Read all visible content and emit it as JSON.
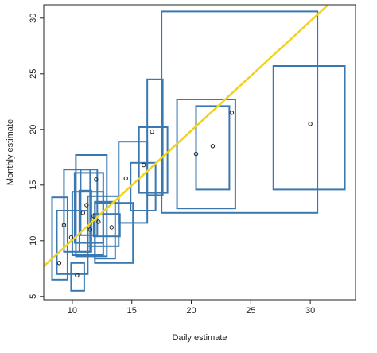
{
  "chart_data": {
    "type": "scatter",
    "xlabel": "Daily estimate",
    "ylabel": "Monthly estimate",
    "xlim": [
      7.6,
      33.8
    ],
    "ylim": [
      4.7,
      31.2
    ],
    "x_ticks": [
      10,
      15,
      20,
      25,
      30
    ],
    "y_ticks": [
      5,
      10,
      15,
      20,
      25,
      30
    ],
    "grid": false,
    "colors": {
      "rect": "#3b78b0",
      "line": "#f2d21a",
      "point": "#222222"
    },
    "fit_line": {
      "from": [
        7.6,
        7.7
      ],
      "to": [
        31.5,
        31.2
      ]
    },
    "points": [
      {
        "x": 8.9,
        "y": 8.0
      },
      {
        "x": 9.3,
        "y": 11.4
      },
      {
        "x": 9.9,
        "y": 10.3
      },
      {
        "x": 10.4,
        "y": 6.9
      },
      {
        "x": 10.9,
        "y": 12.5
      },
      {
        "x": 11.2,
        "y": 13.2
      },
      {
        "x": 11.5,
        "y": 11.0
      },
      {
        "x": 11.8,
        "y": 12.2
      },
      {
        "x": 12.0,
        "y": 15.5
      },
      {
        "x": 12.2,
        "y": 11.7
      },
      {
        "x": 13.3,
        "y": 11.2
      },
      {
        "x": 14.5,
        "y": 15.6
      },
      {
        "x": 16.0,
        "y": 16.8
      },
      {
        "x": 16.7,
        "y": 19.8
      },
      {
        "x": 20.4,
        "y": 17.8
      },
      {
        "x": 21.8,
        "y": 18.5
      },
      {
        "x": 23.4,
        "y": 21.5
      },
      {
        "x": 30.0,
        "y": 20.5
      }
    ],
    "intervals": [
      {
        "x0": 8.3,
        "x1": 9.6,
        "y0": 6.5,
        "y1": 13.9
      },
      {
        "x0": 8.7,
        "x1": 11.3,
        "y0": 7.0,
        "y1": 12.7
      },
      {
        "x0": 9.9,
        "x1": 11.0,
        "y0": 5.5,
        "y1": 8.0
      },
      {
        "x0": 9.3,
        "x1": 11.5,
        "y0": 9.0,
        "y1": 16.4
      },
      {
        "x0": 10.3,
        "x1": 12.9,
        "y0": 8.6,
        "y1": 17.7
      },
      {
        "x0": 10.6,
        "x1": 11.6,
        "y0": 9.0,
        "y1": 14.5
      },
      {
        "x0": 10.0,
        "x1": 12.6,
        "y0": 8.7,
        "y1": 14.4
      },
      {
        "x0": 10.2,
        "x1": 12.6,
        "y0": 9.8,
        "y1": 16.1
      },
      {
        "x0": 10.7,
        "x1": 12.1,
        "y0": 10.5,
        "y1": 16.4
      },
      {
        "x0": 11.3,
        "x1": 13.9,
        "y0": 9.5,
        "y1": 14.0
      },
      {
        "x0": 11.9,
        "x1": 13.6,
        "y0": 8.4,
        "y1": 13.5
      },
      {
        "x0": 11.8,
        "x1": 14.0,
        "y0": 10.4,
        "y1": 12.4
      },
      {
        "x0": 11.9,
        "x1": 15.1,
        "y0": 8.0,
        "y1": 13.4
      },
      {
        "x0": 13.9,
        "x1": 16.3,
        "y0": 11.6,
        "y1": 18.9
      },
      {
        "x0": 14.9,
        "x1": 17.0,
        "y0": 12.7,
        "y1": 17.0
      },
      {
        "x0": 15.6,
        "x1": 18.0,
        "y0": 14.3,
        "y1": 20.2
      },
      {
        "x0": 16.3,
        "x1": 17.6,
        "y0": 14.1,
        "y1": 24.5
      },
      {
        "x0": 17.5,
        "x1": 30.6,
        "y0": 12.5,
        "y1": 30.6
      },
      {
        "x0": 18.8,
        "x1": 23.7,
        "y0": 12.9,
        "y1": 22.7
      },
      {
        "x0": 20.4,
        "x1": 23.2,
        "y0": 14.6,
        "y1": 22.1
      },
      {
        "x0": 26.9,
        "x1": 32.9,
        "y0": 14.6,
        "y1": 25.7
      }
    ]
  }
}
